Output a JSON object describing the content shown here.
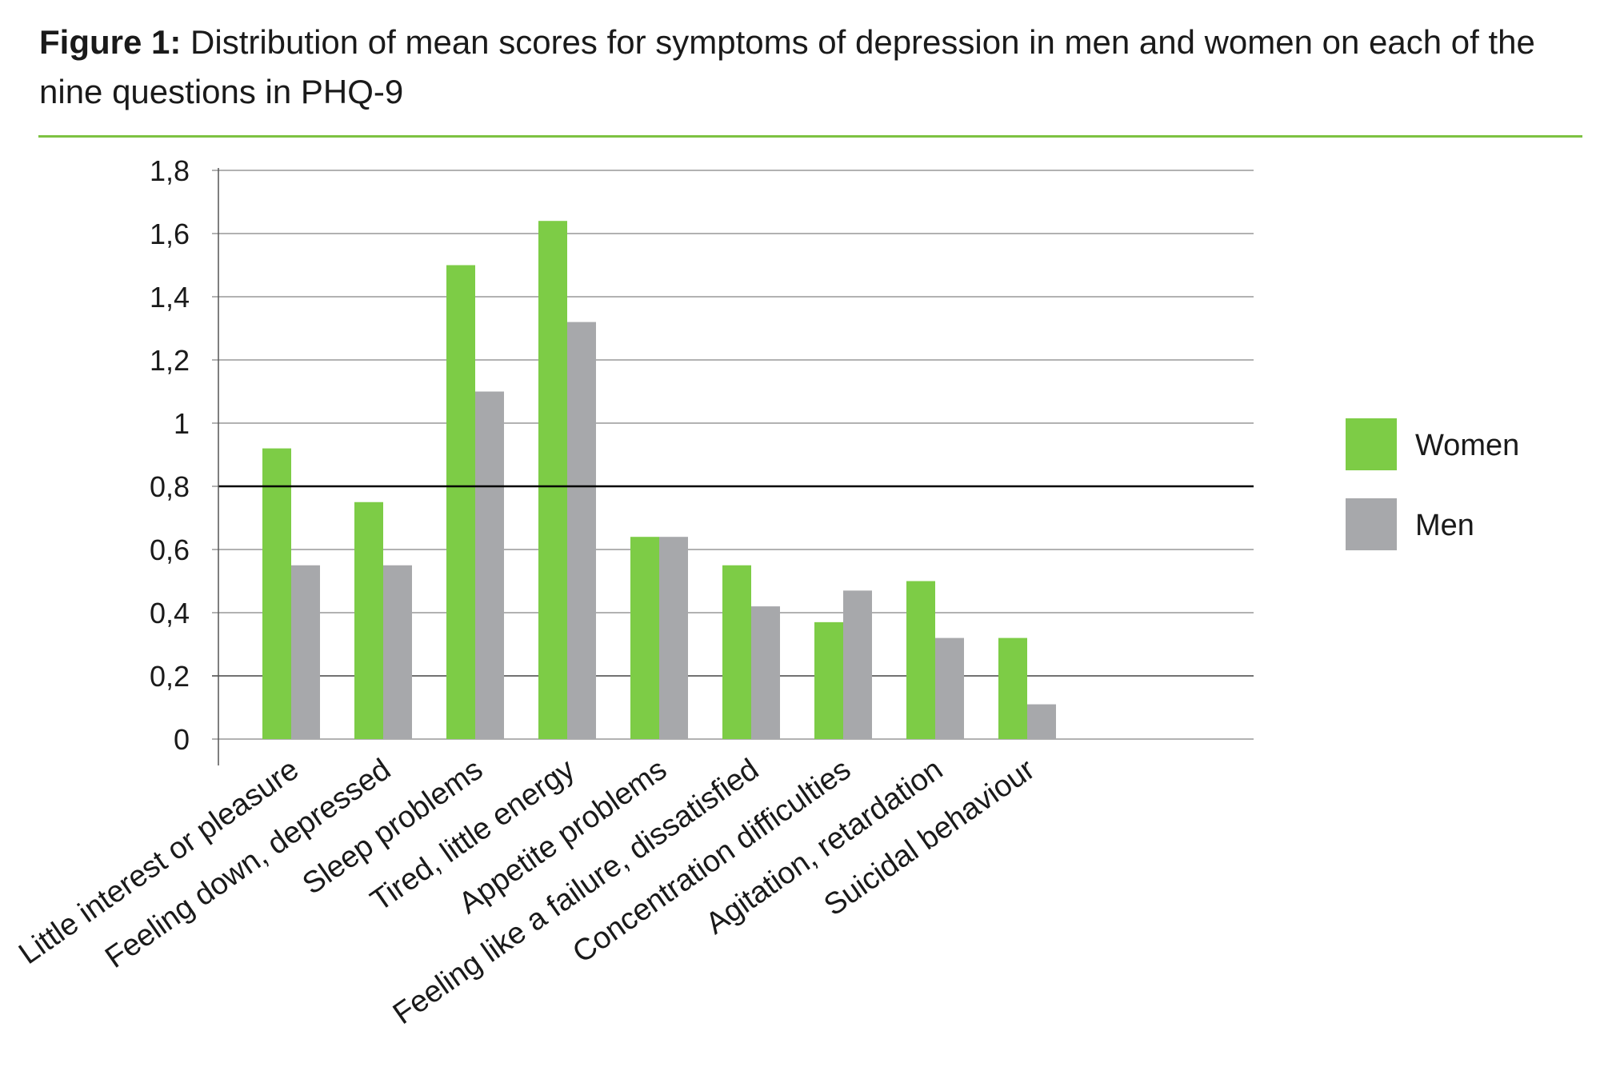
{
  "title": {
    "label": "Figure 1:",
    "text": " Distribution of mean scores for symptoms of depression in men and women on each of the nine questions in PHQ-9"
  },
  "colors": {
    "women": "#7dcc46",
    "men": "#a7a8ab",
    "rule": "#7dc242",
    "reference_line": "#000000"
  },
  "chart_data": {
    "type": "bar",
    "categories": [
      "Little interest or pleasure",
      "Feeling down, depressed",
      "Sleep problems",
      "Tired, little energy",
      "Appetite problems",
      "Feeling like a failure, dissatisfied",
      "Concentration difficulties",
      "Agitation, retardation",
      "Suicidal behaviour"
    ],
    "series": [
      {
        "name": "Women",
        "values": [
          0.92,
          0.75,
          1.5,
          1.64,
          0.64,
          0.55,
          0.37,
          0.5,
          0.32
        ]
      },
      {
        "name": "Men",
        "values": [
          0.55,
          0.55,
          1.1,
          1.32,
          0.64,
          0.42,
          0.47,
          0.32,
          0.11
        ]
      }
    ],
    "yticks": [
      "0",
      "0,2",
      "0,4",
      "0,6",
      "0,8",
      "1",
      "1,2",
      "1,4",
      "1,6",
      "1,8"
    ],
    "ylim": [
      0,
      1.8
    ],
    "reference_line": 0.8,
    "grid": true,
    "legend_position": "right",
    "xlabel": "",
    "ylabel": ""
  }
}
